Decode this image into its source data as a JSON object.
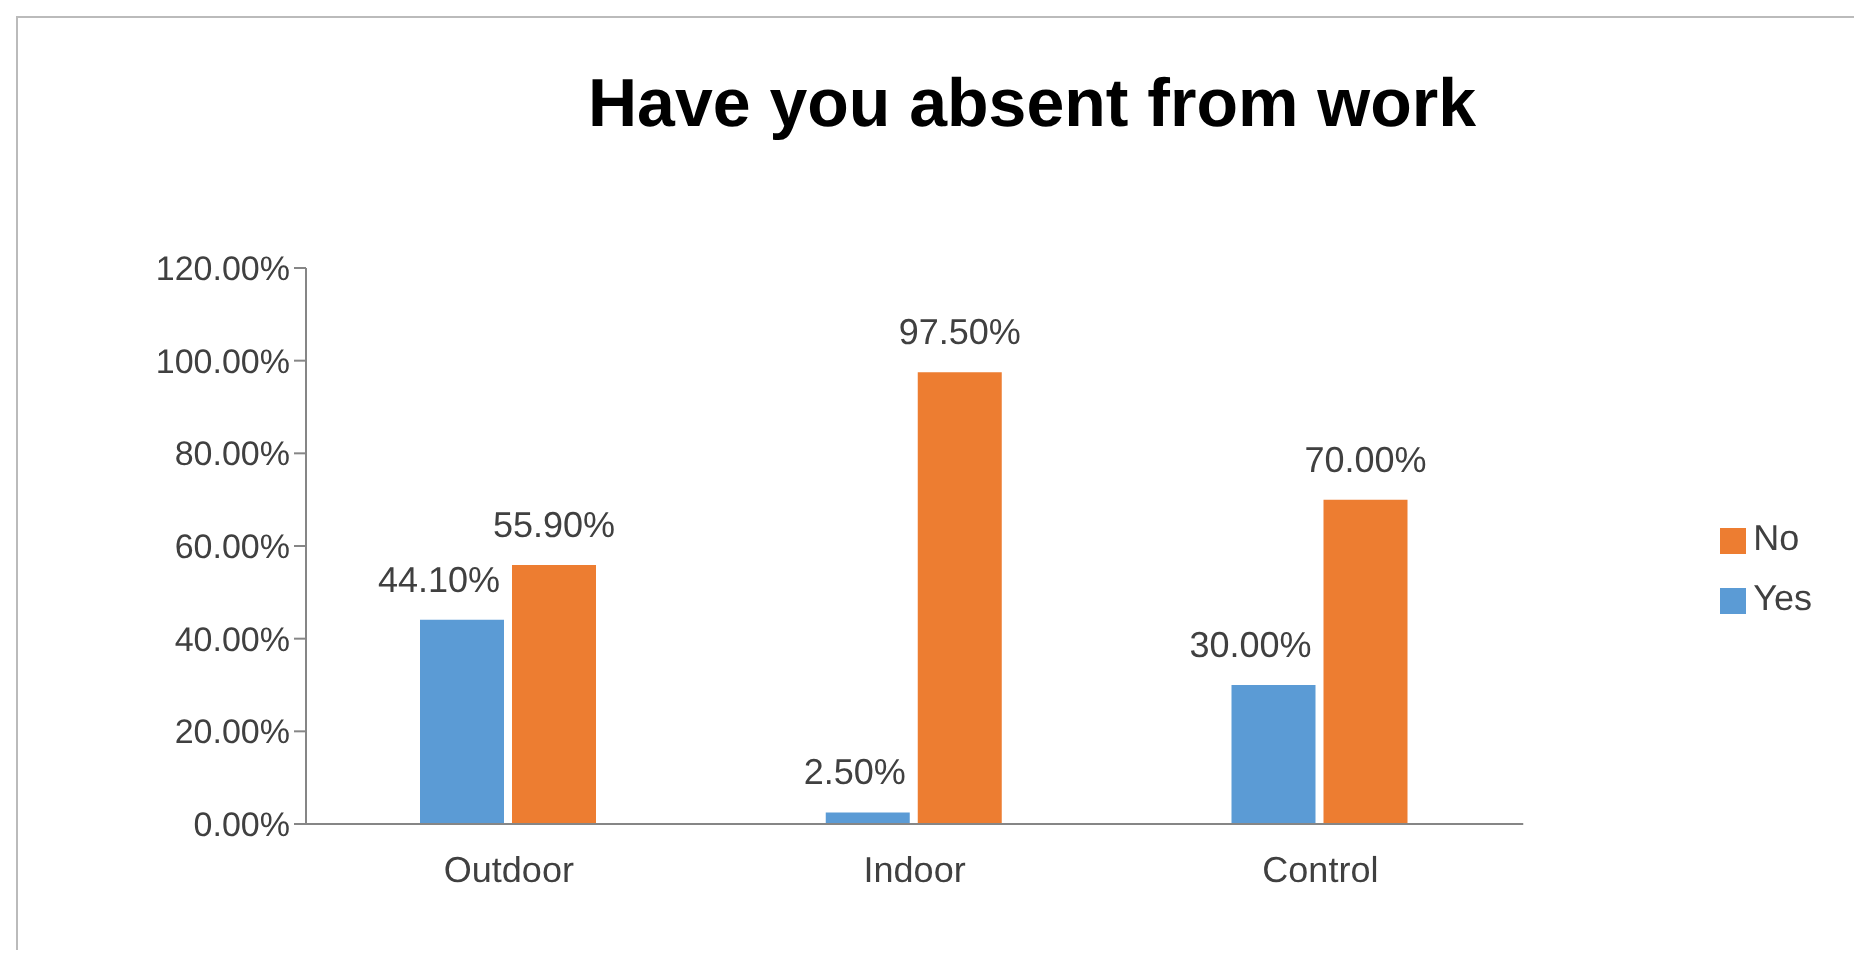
{
  "chart_data": {
    "type": "bar",
    "title": "Have you absent from work",
    "categories": [
      "Outdoor",
      "Indoor",
      "Control"
    ],
    "series": [
      {
        "name": "Yes",
        "color": "#5b9bd5",
        "values": [
          44.1,
          2.5,
          30.0
        ],
        "value_labels": [
          "44.10%",
          "2.50%",
          "30.00%"
        ]
      },
      {
        "name": "No",
        "color": "#ed7d31",
        "values": [
          55.9,
          97.5,
          70.0
        ],
        "value_labels": [
          "55.90%",
          "97.50%",
          "70.00%"
        ]
      }
    ],
    "ylim": [
      0,
      120
    ],
    "yticks": [
      {
        "value": 0,
        "label": "0.00%"
      },
      {
        "value": 20,
        "label": "20.00%"
      },
      {
        "value": 40,
        "label": "40.00%"
      },
      {
        "value": 60,
        "label": "60.00%"
      },
      {
        "value": 80,
        "label": "80.00%"
      },
      {
        "value": 100,
        "label": "100.00%"
      },
      {
        "value": 120,
        "label": "120.00%"
      }
    ],
    "grid": false,
    "legend": "right"
  }
}
